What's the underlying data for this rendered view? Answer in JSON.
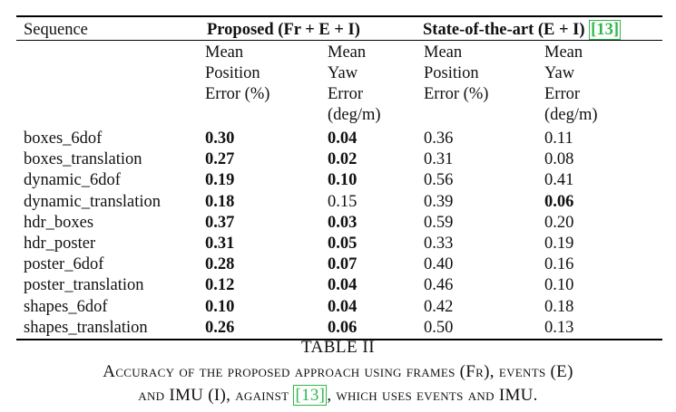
{
  "table": {
    "col_sequence": "Sequence",
    "group_proposed": "Proposed (Fr + E + I)",
    "group_sota_prefix": "State-of-the-art (E + I) ",
    "group_sota_cite": "[13]",
    "sub_headers": {
      "p_pos": [
        "Mean",
        "Position",
        "Error (%)"
      ],
      "p_yaw": [
        "Mean",
        "Yaw",
        "Error",
        "(deg/m)"
      ],
      "s_pos": [
        "Mean",
        "Position",
        "Error (%)"
      ],
      "s_yaw": [
        "Mean",
        "Yaw",
        "Error",
        "(deg/m)"
      ]
    },
    "rows": [
      {
        "seq": "boxes_6dof",
        "p_pos": "0.30",
        "p_yaw": "0.04",
        "s_pos": "0.36",
        "s_yaw": "0.11"
      },
      {
        "seq": "boxes_translation",
        "p_pos": "0.27",
        "p_yaw": "0.02",
        "s_pos": "0.31",
        "s_yaw": "0.08"
      },
      {
        "seq": "dynamic_6dof",
        "p_pos": "0.19",
        "p_yaw": "0.10",
        "s_pos": "0.56",
        "s_yaw": "0.41"
      },
      {
        "seq": "dynamic_translation",
        "p_pos": "0.18",
        "p_yaw": "0.15",
        "s_pos": "0.39",
        "s_yaw": "0.06"
      },
      {
        "seq": "hdr_boxes",
        "p_pos": "0.37",
        "p_yaw": "0.03",
        "s_pos": "0.59",
        "s_yaw": "0.20"
      },
      {
        "seq": "hdr_poster",
        "p_pos": "0.31",
        "p_yaw": "0.05",
        "s_pos": "0.33",
        "s_yaw": "0.19"
      },
      {
        "seq": "poster_6dof",
        "p_pos": "0.28",
        "p_yaw": "0.07",
        "s_pos": "0.40",
        "s_yaw": "0.16"
      },
      {
        "seq": "poster_translation",
        "p_pos": "0.12",
        "p_yaw": "0.04",
        "s_pos": "0.46",
        "s_yaw": "0.10"
      },
      {
        "seq": "shapes_6dof",
        "p_pos": "0.10",
        "p_yaw": "0.04",
        "s_pos": "0.42",
        "s_yaw": "0.18"
      },
      {
        "seq": "shapes_translation",
        "p_pos": "0.26",
        "p_yaw": "0.06",
        "s_pos": "0.50",
        "s_yaw": "0.13"
      }
    ],
    "bold_cells": {
      "p_pos": [
        0,
        1,
        2,
        3,
        4,
        5,
        6,
        7,
        8,
        9
      ],
      "p_yaw": [
        0,
        1,
        2,
        4,
        5,
        6,
        7,
        8,
        9
      ],
      "s_pos": [],
      "s_yaw": [
        3
      ]
    }
  },
  "caption": {
    "label": "TABLE II",
    "line1": "Accuracy of the proposed approach using frames (Fr), events (E)",
    "line2_prefix": "and IMU (I), against ",
    "line2_cite": "[13]",
    "line2_suffix": ", which uses events and IMU."
  }
}
